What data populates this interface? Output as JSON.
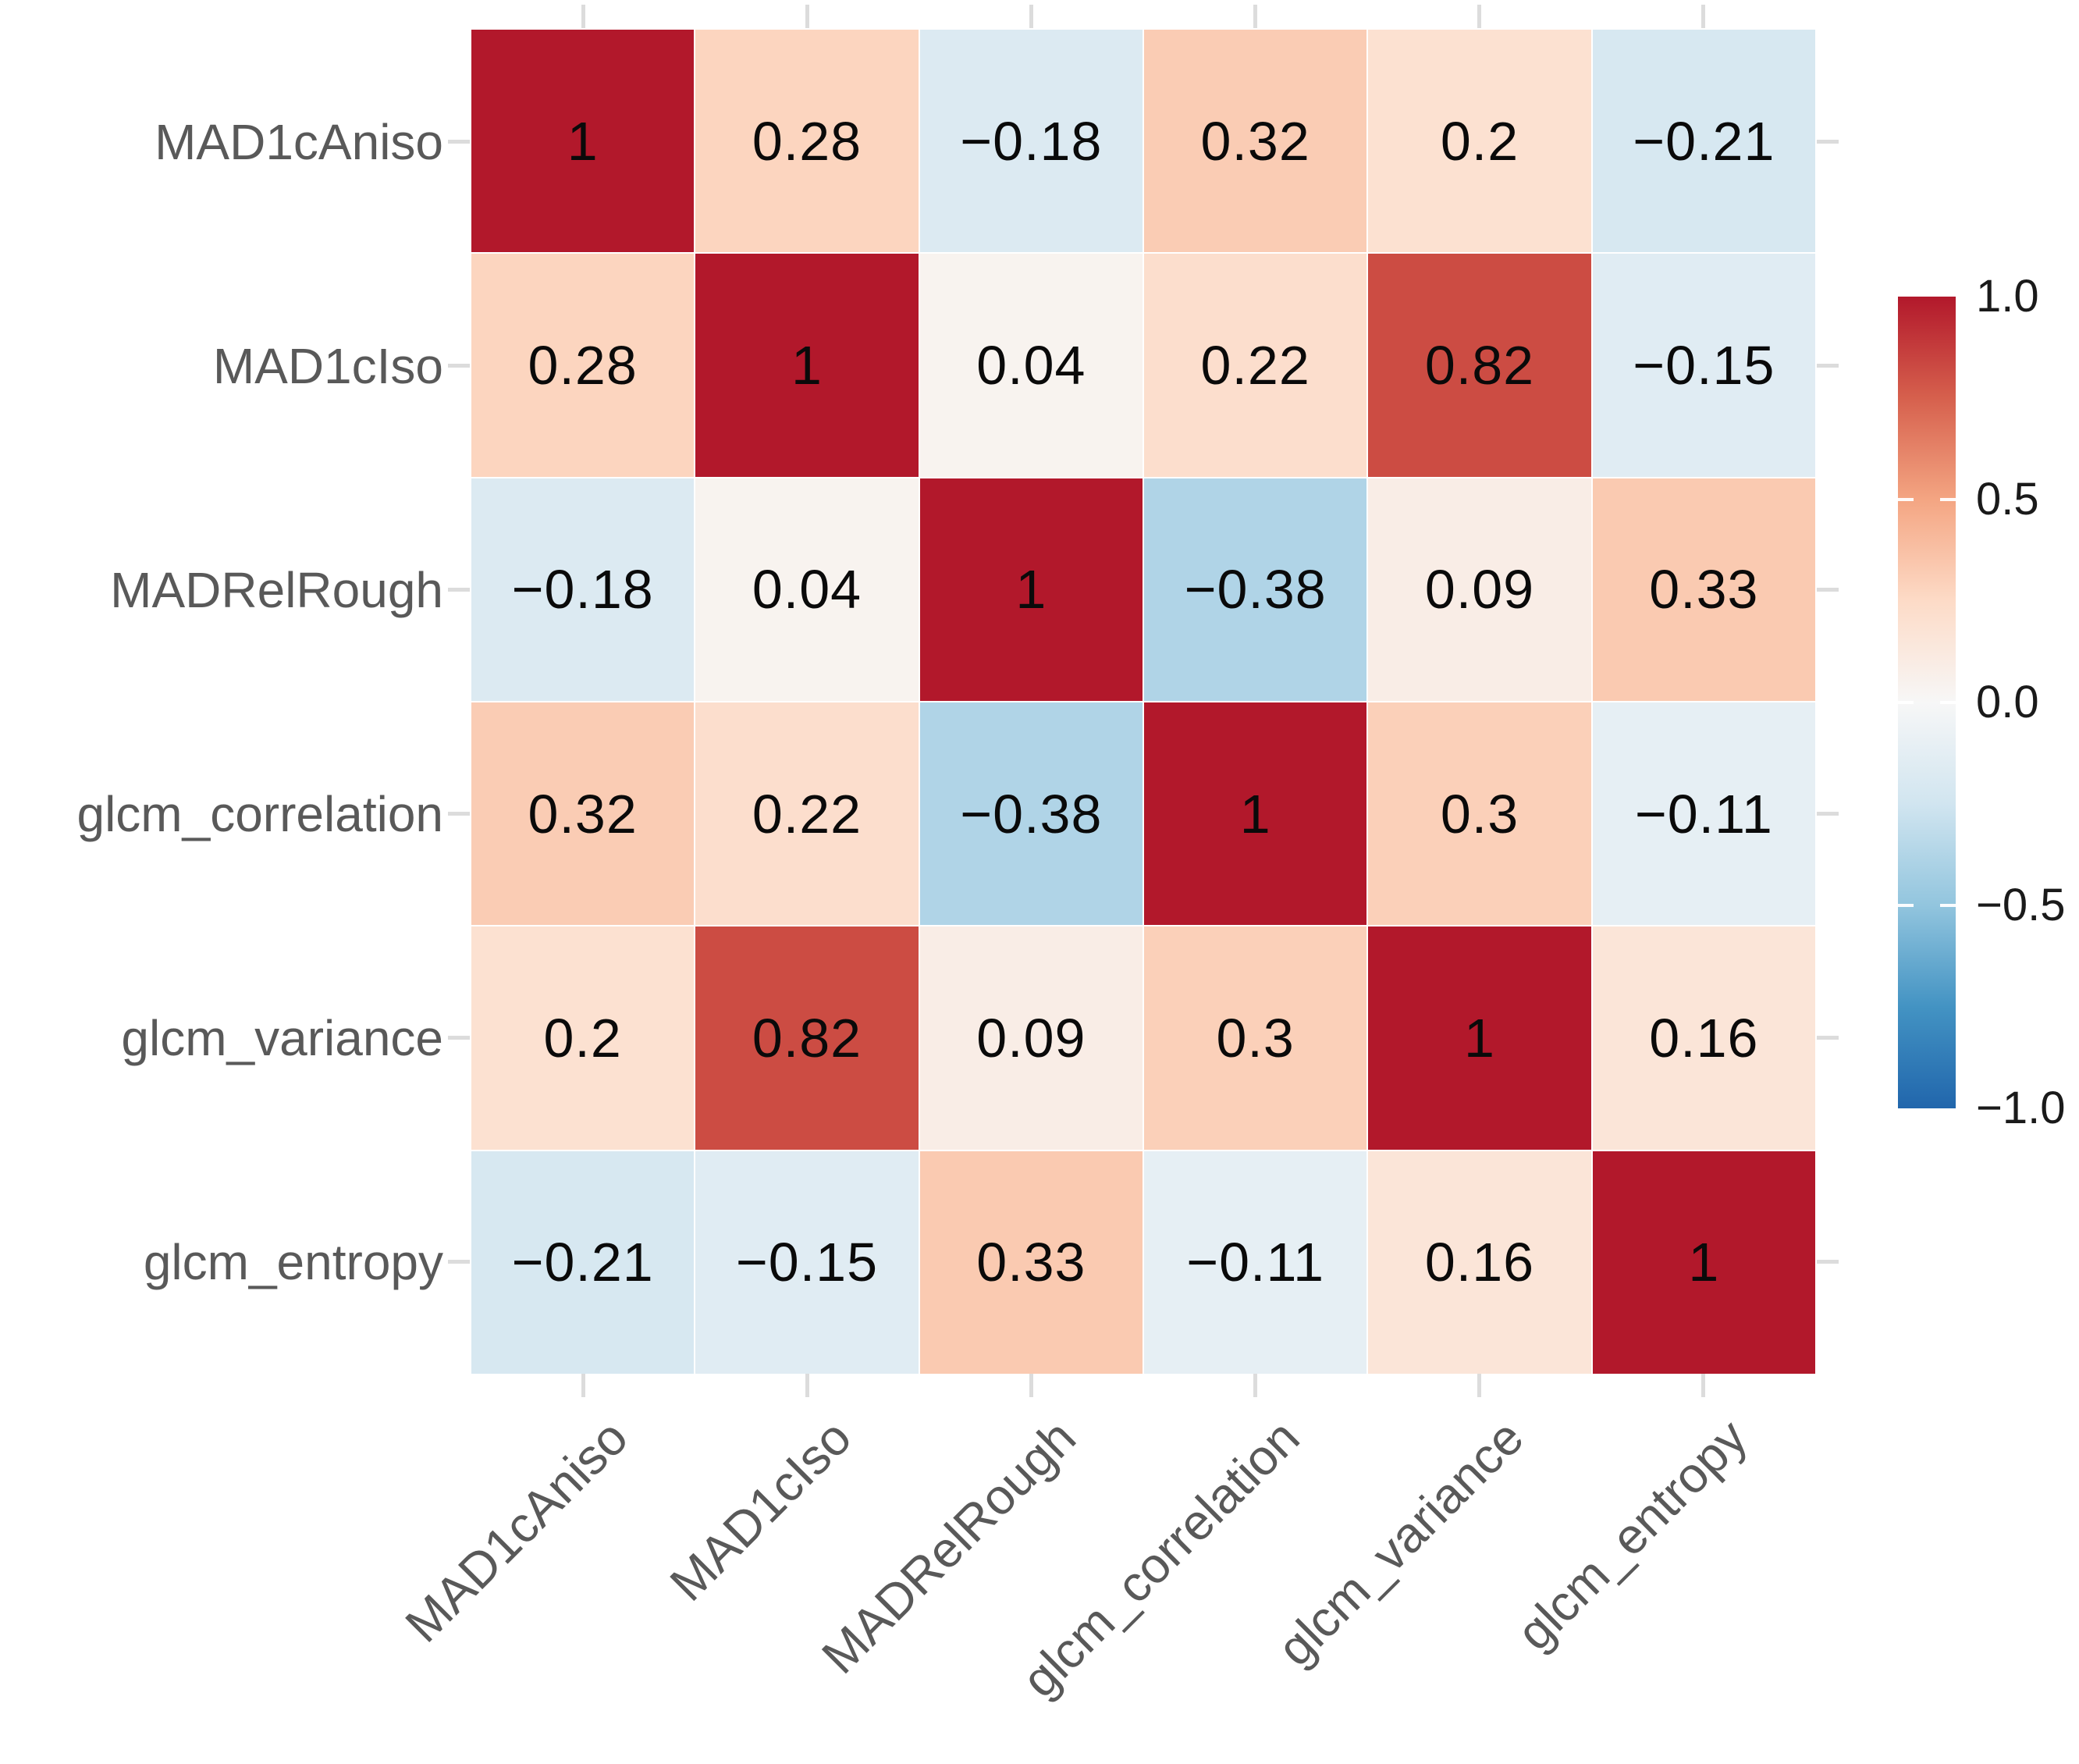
{
  "chart_data": {
    "type": "heatmap",
    "subtype": "correlation-matrix",
    "variables": [
      "MAD1cAniso",
      "MAD1cIso",
      "MADRelRough",
      "glcm_correlation",
      "glcm_variance",
      "glcm_entropy"
    ],
    "matrix": [
      [
        1,
        0.28,
        -0.18,
        0.32,
        0.2,
        -0.21
      ],
      [
        0.28,
        1,
        0.04,
        0.22,
        0.82,
        -0.15
      ],
      [
        -0.18,
        0.04,
        1,
        -0.38,
        0.09,
        0.33
      ],
      [
        0.32,
        0.22,
        -0.38,
        1,
        0.3,
        -0.11
      ],
      [
        0.2,
        0.82,
        0.09,
        0.3,
        1,
        0.16
      ],
      [
        -0.21,
        -0.15,
        0.33,
        -0.11,
        0.16,
        1
      ]
    ],
    "value_range": [
      -1,
      1
    ],
    "grid": true,
    "legend_position": "right",
    "colorbar": {
      "tick_labels": [
        "1.0",
        "0.5",
        "0.0",
        "−0.5",
        "−1.0"
      ],
      "tick_values": [
        1,
        0.5,
        0,
        -0.5,
        -1
      ]
    },
    "colors": {
      "palette_stops_pos_to_neg": [
        "#B2182B",
        "#D6604D",
        "#F4A582",
        "#FDDBC7",
        "#F7F7F7",
        "#D1E5F0",
        "#92C5DE",
        "#4393C3",
        "#2166AC"
      ],
      "max_positive": "#B2182B",
      "zero": "#F7F7F7",
      "max_negative": "#2166AC",
      "axis_label_color": "#595959",
      "cell_value_color": "#0a0a0a",
      "colorbar_label_color": "#1a1a1a",
      "tick_mark_color": "#dcdcdc",
      "background": "#ffffff"
    }
  }
}
